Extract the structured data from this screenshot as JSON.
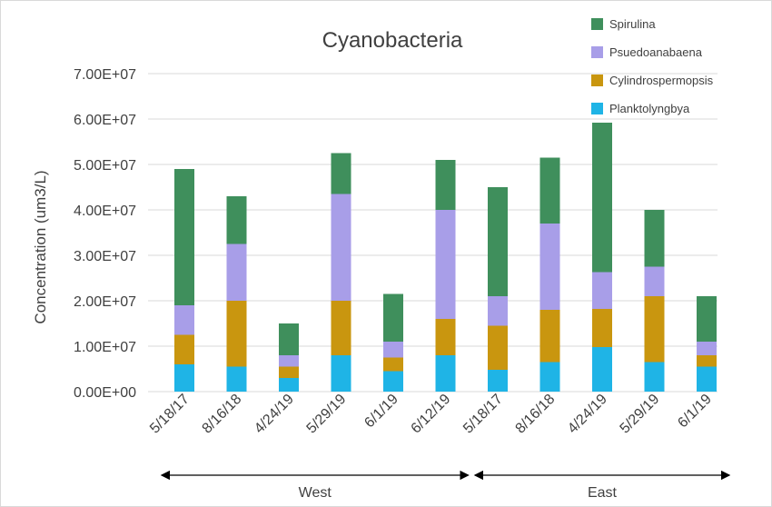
{
  "chart_data": {
    "type": "bar",
    "stacked": true,
    "title": "Cyanobacteria",
    "xlabel": "",
    "ylabel": "Concentration (um3/L)",
    "ylim": [
      0,
      70000000
    ],
    "yticks": [
      "0.00E+00",
      "1.00E+07",
      "2.00E+07",
      "3.00E+07",
      "4.00E+07",
      "5.00E+07",
      "6.00E+07",
      "7.00E+07"
    ],
    "grid": true,
    "legend_position": "top-right",
    "categories": [
      "5/18/17",
      "8/16/18",
      "4/24/19",
      "5/29/19",
      "6/1/19",
      "6/12/19",
      "5/18/17",
      "8/16/18",
      "4/24/19",
      "5/29/19",
      "6/1/19"
    ],
    "groups": [
      {
        "label": "West",
        "start": 0,
        "end": 5
      },
      {
        "label": "East",
        "start": 6,
        "end": 10
      }
    ],
    "series": [
      {
        "name": "Planktolyngbya",
        "color": "#1fb4e6",
        "values": [
          6000000,
          5500000,
          3000000,
          8000000,
          4500000,
          8000000,
          4800000,
          6500000,
          9800000,
          6500000,
          5500000
        ]
      },
      {
        "name": "Cylindrospermopsis",
        "color": "#c9960f",
        "values": [
          6500000,
          14500000,
          2500000,
          12000000,
          3000000,
          8000000,
          9700000,
          11500000,
          8400000,
          14500000,
          2500000
        ]
      },
      {
        "name": "Psuedoanabaena",
        "color": "#a89ee8",
        "values": [
          6500000,
          12500000,
          2500000,
          23500000,
          3500000,
          24000000,
          6500000,
          19000000,
          8100000,
          6500000,
          3000000
        ]
      },
      {
        "name": "Spirulina",
        "color": "#3f8f5c",
        "values": [
          30000000,
          10500000,
          7000000,
          9000000,
          10500000,
          11000000,
          24000000,
          14500000,
          32900000,
          12500000,
          10000000
        ]
      }
    ]
  }
}
